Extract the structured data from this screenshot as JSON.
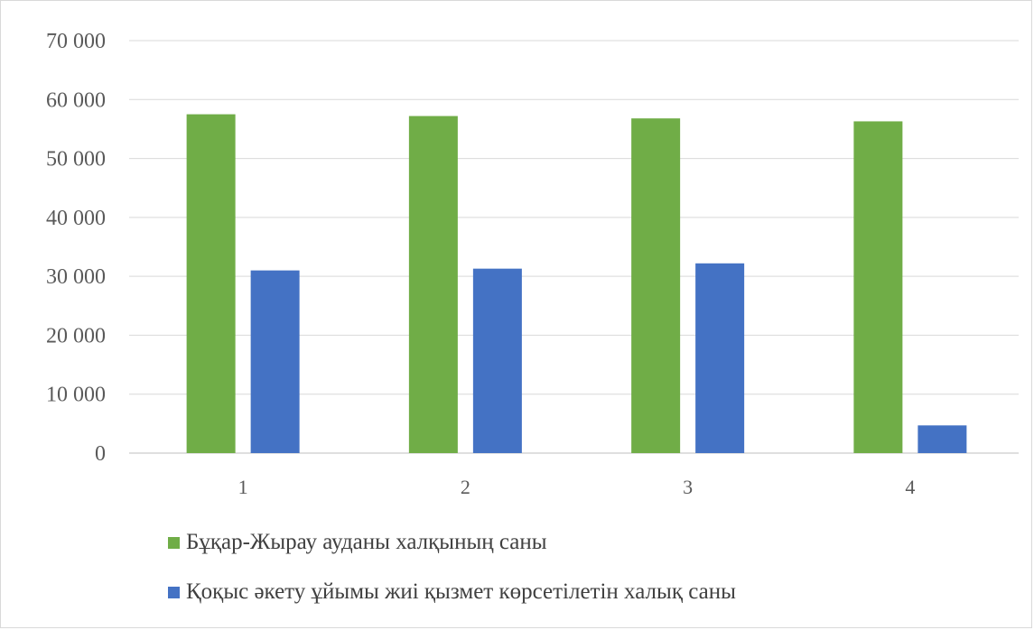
{
  "chart_data": {
    "type": "bar",
    "categories": [
      "1",
      "2",
      "3",
      "4"
    ],
    "series": [
      {
        "name": "Бұқар-Жырау ауданы халқының саны",
        "color": "#70ad47",
        "values": [
          57500,
          57200,
          56800,
          56300
        ]
      },
      {
        "name": "Қоқыс әкету ұйымы жиі қызмет көрсетілетін халық саны",
        "color": "#4472c4",
        "values": [
          31000,
          31300,
          32200,
          4700
        ]
      }
    ],
    "title": "",
    "xlabel": "",
    "ylabel": "",
    "ylim": [
      0,
      70000
    ],
    "yticks": [
      0,
      10000,
      20000,
      30000,
      40000,
      50000,
      60000,
      70000
    ],
    "ytick_labels": [
      "0",
      "10 000",
      "20 000",
      "30 000",
      "40 000",
      "50 000",
      "60 000",
      "70 000"
    ],
    "grid": true,
    "legend_position": "bottom-left",
    "gridline_color": "#d9d9d9"
  }
}
